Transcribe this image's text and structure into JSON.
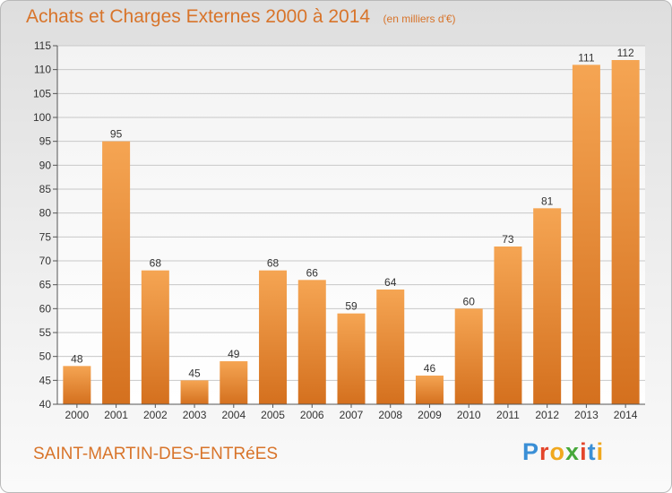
{
  "title": "Achats et Charges Externes 2000 à 2014",
  "subtitle": "(en milliers d'€)",
  "footer_name": "SAINT-MARTIN-DES-ENTRéES",
  "logo": {
    "text": "Proxiti",
    "letter_colors": [
      "#3a8fd6",
      "#e3452b",
      "#f0a81e",
      "#47a83a",
      "#e3452b",
      "#3a8fd6",
      "#f0a81e"
    ]
  },
  "colors": {
    "bar_light": "#f5a553",
    "bar_dark": "#d4701e",
    "title": "#d8742a",
    "grid": "#c8c8c8"
  },
  "chart_data": {
    "type": "bar",
    "categories": [
      "2000",
      "2001",
      "2002",
      "2003",
      "2004",
      "2005",
      "2006",
      "2007",
      "2008",
      "2009",
      "2010",
      "2011",
      "2012",
      "2013",
      "2014"
    ],
    "values": [
      48,
      95,
      68,
      45,
      49,
      68,
      66,
      59,
      64,
      46,
      60,
      73,
      81,
      111,
      112
    ],
    "title": "Achats et Charges Externes 2000 à 2014",
    "subtitle": "(en milliers d'€)",
    "xlabel": "",
    "ylabel": "",
    "ylim": [
      40,
      115
    ],
    "yticks": [
      40,
      45,
      50,
      55,
      60,
      65,
      70,
      75,
      80,
      85,
      90,
      95,
      100,
      105,
      110,
      115
    ],
    "grid": true,
    "data_labels": true
  }
}
